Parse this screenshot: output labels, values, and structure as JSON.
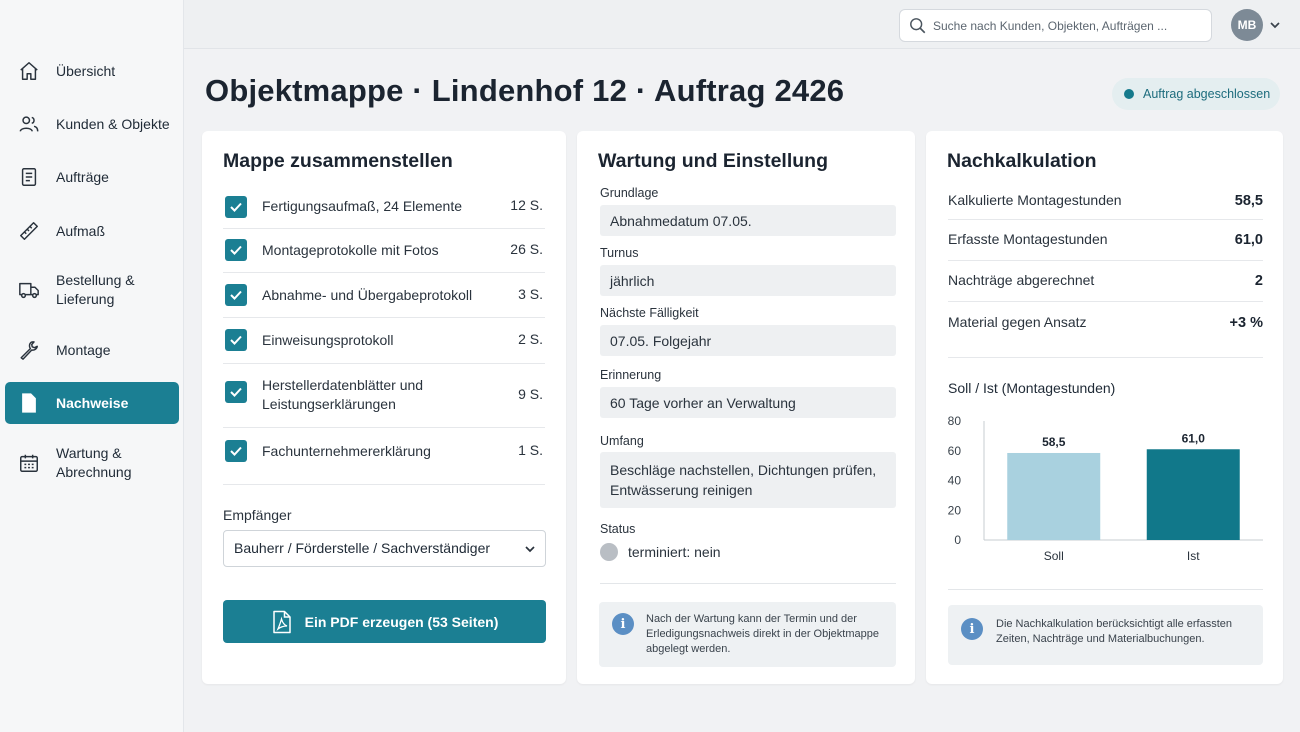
{
  "sidebar": {
    "items": [
      {
        "label": "Übersicht",
        "icon": "home-icon"
      },
      {
        "label": "Kunden & Objekte",
        "icon": "users-icon"
      },
      {
        "label": "Aufträge",
        "icon": "document-icon"
      },
      {
        "label": "Aufmaß",
        "icon": "ruler-icon"
      },
      {
        "label": "Bestellung &",
        "label2": "Lieferung",
        "icon": "truck-icon"
      },
      {
        "label": "Montage",
        "icon": "wrench-icon"
      },
      {
        "label": "Nachweise",
        "icon": "file-icon",
        "active": true
      },
      {
        "label": "Wartung &",
        "label2": "Abrechnung",
        "icon": "calendar-icon"
      }
    ]
  },
  "topbar": {
    "search_placeholder": "Suche nach Kunden, Objekten, Aufträgen ...",
    "avatar_initials": "MB"
  },
  "header": {
    "title": "Objektmappe · Lindenhof 12 · Auftrag 2426",
    "status": "Auftrag abgeschlossen"
  },
  "mappe": {
    "title": "Mappe zusammenstellen",
    "documents": [
      {
        "name": "Fertigungsaufmaß, 24 Elemente",
        "pages": "12 S.",
        "checked": true
      },
      {
        "name": "Montageprotokolle mit Fotos",
        "pages": "26 S.",
        "checked": true
      },
      {
        "name": "Abnahme- und Übergabeprotokoll",
        "pages": "3 S.",
        "checked": true
      },
      {
        "name": "Einweisungsprotokoll",
        "pages": "2 S.",
        "checked": true
      },
      {
        "name": "Herstellerdatenblätter und",
        "name2": "Leistungserklärungen",
        "pages": "9 S.",
        "checked": true
      },
      {
        "name": "Fachunternehmererklärung",
        "pages": "1 S.",
        "checked": true
      }
    ],
    "recipient_label": "Empfänger",
    "recipient_value": "Bauherr / Förderstelle / Sachverständiger",
    "pdf_button": "Ein PDF erzeugen (53 Seiten)"
  },
  "wartung": {
    "title": "Wartung und Einstellung",
    "fields": [
      {
        "label": "Grundlage",
        "value": "Abnahmedatum 07.05."
      },
      {
        "label": "Turnus",
        "value": "jährlich"
      },
      {
        "label": "Nächste Fälligkeit",
        "value": "07.05. Folgejahr"
      },
      {
        "label": "Erinnerung",
        "value": "60 Tage vorher an Verwaltung"
      },
      {
        "label": "Umfang",
        "value": "Beschläge nachstellen, Dichtungen prüfen,",
        "value2": "Entwässerung reinigen"
      }
    ],
    "status_label": "Status",
    "status_value": "terminiert: nein",
    "info_line1": "Nach der Wartung kann der Termin und der",
    "info_line2": "Erledigungsnachweis direkt in der Objektmappe",
    "info_line3": "abgelegt werden."
  },
  "nachkalkulation": {
    "title": "Nachkalkulation",
    "rows": [
      {
        "label": "Kalkulierte Montagestunden",
        "value": "58,5"
      },
      {
        "label": "Erfasste Montagestunden",
        "value": "61,0"
      },
      {
        "label": "Nachträge abgerechnet",
        "value": "2"
      },
      {
        "label": "Material gegen Ansatz",
        "value": "+3 %"
      }
    ],
    "info_line1": "Die Nachkalkulation berücksichtigt alle erfassten",
    "info_line2": "Zeiten, Nachträge und Materialbuchungen."
  },
  "chart_data": {
    "type": "bar",
    "title": "Soll / Ist (Montagestunden)",
    "categories": [
      "Soll",
      "Ist"
    ],
    "values": [
      58.5,
      61.0
    ],
    "value_labels": [
      "58,5",
      "61,0"
    ],
    "colors": [
      "#a9d1df",
      "#11788a"
    ],
    "ylim": [
      0,
      80
    ],
    "yticks": [
      "0",
      "20",
      "40",
      "60",
      "80"
    ],
    "grid": false
  },
  "colors": {
    "accent": "#1b7f93",
    "status_dot": "#157a8c"
  }
}
